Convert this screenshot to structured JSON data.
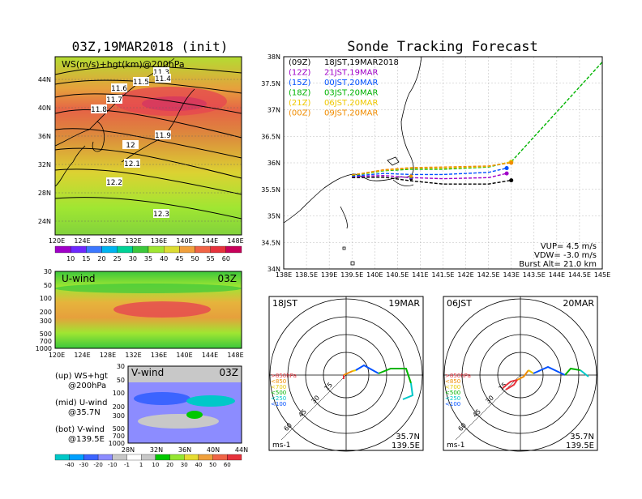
{
  "left_title": "03Z,19MAR2018 (init)",
  "right_title": "Sonde Tracking Forecast",
  "map1": {
    "label": "WS(m/s)+hgt(km)@200hPa",
    "y_ticks": [
      "44N",
      "40N",
      "36N",
      "32N",
      "28N",
      "24N"
    ],
    "x_ticks": [
      "120E",
      "124E",
      "128E",
      "132E",
      "136E",
      "140E",
      "144E",
      "148E"
    ],
    "contour_labels": [
      "11.3",
      "11.5",
      "11.4",
      "11.6",
      "11.7",
      "11.8",
      "11.9",
      "12",
      "12.1",
      "12.2",
      "12.3"
    ]
  },
  "colorbar1": {
    "labels": [
      "10",
      "15",
      "20",
      "25",
      "30",
      "35",
      "40",
      "45",
      "50",
      "55",
      "60"
    ],
    "colors": [
      "#a000c8",
      "#6e28ff",
      "#3c78ff",
      "#00b4f0",
      "#00d296",
      "#3cc83c",
      "#a0e632",
      "#dcdc32",
      "#f0a03c",
      "#f06446",
      "#e6323c",
      "#c8005a"
    ]
  },
  "uwind": {
    "label": "U-wind",
    "time": "03Z",
    "y_ticks": [
      "30",
      "50",
      "100",
      "200",
      "300",
      "500",
      "700",
      "1000"
    ],
    "x_ticks": [
      "120E",
      "124E",
      "128E",
      "132E",
      "136E",
      "140E",
      "144E",
      "148E"
    ]
  },
  "vwind": {
    "label": "V-wind",
    "time": "03Z",
    "y_ticks": [
      "30",
      "50",
      "100",
      "200",
      "300",
      "500",
      "700",
      "1000"
    ],
    "x_ticks": [
      "28N",
      "32N",
      "36N",
      "40N",
      "44N"
    ]
  },
  "legend_notes": [
    {
      "title": "(up) WS+hgt",
      "sub": "@200hPa"
    },
    {
      "title": "(mid) U-wind",
      "sub": "@35.7N"
    },
    {
      "title": "(bot) V-wind",
      "sub": "@139.5E"
    }
  ],
  "colorbar2": {
    "labels": [
      "-40",
      "-30",
      "-20",
      "-10",
      "-1",
      "1",
      "10",
      "20",
      "30",
      "40",
      "50",
      "60"
    ],
    "colors": [
      "#00c8c8",
      "#00a0ff",
      "#3c64ff",
      "#8c8cff",
      "#c8c8c8",
      "#ffffff",
      "#c8c8c8",
      "#00c800",
      "#96e632",
      "#e6dc32",
      "#f0a03c",
      "#f06446",
      "#e6323c"
    ]
  },
  "track": {
    "y_ticks": [
      "38N",
      "37.5N",
      "37N",
      "36.5N",
      "36N",
      "35.5N",
      "35N",
      "34.5N",
      "34N"
    ],
    "x_ticks": [
      "138E",
      "138.5E",
      "139E",
      "139.5E",
      "140E",
      "140.5E",
      "141E",
      "141.5E",
      "142E",
      "142.5E",
      "143E",
      "143.5E",
      "144E",
      "144.5E",
      "145E"
    ],
    "legend": [
      {
        "code": "(09Z)",
        "text": "18JST,19MAR2018",
        "color": "#000000"
      },
      {
        "code": "(12Z)",
        "text": "21JST,19MAR",
        "color": "#a000c8"
      },
      {
        "code": "(15Z)",
        "text": "00JST,20MAR",
        "color": "#0050ff"
      },
      {
        "code": "(18Z)",
        "text": "03JST,20MAR",
        "color": "#00b400"
      },
      {
        "code": "(21Z)",
        "text": "06JST,20MAR",
        "color": "#f0c800"
      },
      {
        "code": "(00Z)",
        "text": "09JST,20MAR",
        "color": "#f08c00"
      }
    ],
    "vup": "VUP= 4.5 m/s",
    "vdw": "VDW= -3.0 m/s",
    "burst": "Burst Alt= 21.0 km"
  },
  "chart_data": {
    "type": "line",
    "title": "Sonde Tracking Forecast",
    "xlim": [
      138,
      145
    ],
    "ylim": [
      34,
      38
    ],
    "series": [
      {
        "name": "18JST,19MAR2018",
        "color": "#000000",
        "points": [
          [
            139.5,
            35.72
          ],
          [
            140.2,
            35.73
          ],
          [
            140.8,
            35.66
          ],
          [
            141.5,
            35.6
          ],
          [
            142.5,
            35.6
          ],
          [
            143.0,
            35.67
          ]
        ]
      },
      {
        "name": "21JST,19MAR",
        "color": "#a000c8",
        "points": [
          [
            139.5,
            35.74
          ],
          [
            140.2,
            35.76
          ],
          [
            140.8,
            35.72
          ],
          [
            141.5,
            35.7
          ],
          [
            142.5,
            35.72
          ],
          [
            142.9,
            35.8
          ]
        ]
      },
      {
        "name": "00JST,20MAR",
        "color": "#0050ff",
        "points": [
          [
            139.5,
            35.75
          ],
          [
            140.2,
            35.8
          ],
          [
            140.8,
            35.78
          ],
          [
            141.5,
            35.78
          ],
          [
            142.5,
            35.82
          ],
          [
            142.9,
            35.9
          ]
        ]
      },
      {
        "name": "03JST,20MAR",
        "color": "#00b400",
        "points": [
          [
            139.5,
            35.76
          ],
          [
            140.2,
            35.85
          ],
          [
            140.8,
            35.88
          ],
          [
            141.5,
            35.88
          ],
          [
            142.5,
            35.92
          ],
          [
            143.0,
            36.02
          ],
          [
            145.0,
            37.9
          ]
        ]
      },
      {
        "name": "06JST,20MAR",
        "color": "#f0c800",
        "points": [
          [
            139.5,
            35.77
          ],
          [
            140.2,
            35.86
          ],
          [
            140.8,
            35.9
          ],
          [
            141.5,
            35.9
          ],
          [
            142.5,
            35.93
          ],
          [
            143.0,
            36.02
          ]
        ]
      },
      {
        "name": "09JST,20MAR",
        "color": "#f08c00",
        "points": [
          [
            139.5,
            35.77
          ],
          [
            140.2,
            35.87
          ],
          [
            140.8,
            35.91
          ],
          [
            141.5,
            35.92
          ],
          [
            142.5,
            35.94
          ],
          [
            143.0,
            36.0
          ]
        ]
      }
    ]
  },
  "hodo1": {
    "left": "18JST",
    "right": "19MAR",
    "lat": "35.7N",
    "lon": "139.5E",
    "units": "ms-1",
    "rings": [
      "15",
      "30",
      "45",
      "60"
    ],
    "levels": [
      ">850hPa",
      "<850",
      "<700",
      "<500",
      "<250",
      "<100"
    ],
    "level_colors": [
      "#e6323c",
      "#f08c00",
      "#e6c800",
      "#00b400",
      "#00c8c8",
      "#0050ff"
    ]
  },
  "hodo2": {
    "left": "06JST",
    "right": "20MAR",
    "lat": "35.7N",
    "lon": "139.5E",
    "units": "ms-1",
    "rings": [
      "15",
      "30",
      "45",
      "60"
    ],
    "levels": [
      ">850hPa",
      "<850",
      "<700",
      "<500",
      "<250",
      "<100"
    ],
    "level_colors": [
      "#e6323c",
      "#f08c00",
      "#e6c800",
      "#00b400",
      "#00c8c8",
      "#0050ff"
    ]
  }
}
